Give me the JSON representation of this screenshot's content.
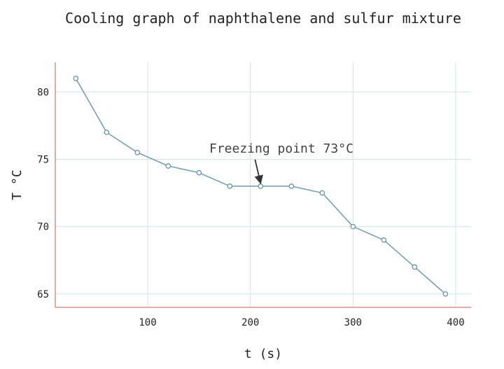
{
  "chart_data": {
    "type": "line",
    "title": "Cooling graph of naphthalene and sulfur mixture",
    "xlabel": "t (s)",
    "ylabel": "T °C",
    "xlim": [
      10,
      415
    ],
    "ylim": [
      64,
      82.2
    ],
    "xticks": [
      100,
      200,
      300,
      400
    ],
    "yticks": [
      65,
      70,
      75,
      80
    ],
    "grid": true,
    "series": [
      {
        "x": [
          30,
          60,
          90,
          120,
          150,
          180,
          210,
          240,
          270,
          300,
          330,
          360,
          390
        ],
        "y": [
          81,
          77,
          75.5,
          74.5,
          74,
          73,
          73,
          73,
          72.5,
          70,
          69,
          67,
          65
        ],
        "color": "#6f9cab"
      }
    ],
    "annotations": [
      {
        "text": "Freezing point 73°C",
        "x": 210,
        "y": 73,
        "text_x": 160,
        "text_y": 75.5
      }
    ]
  }
}
